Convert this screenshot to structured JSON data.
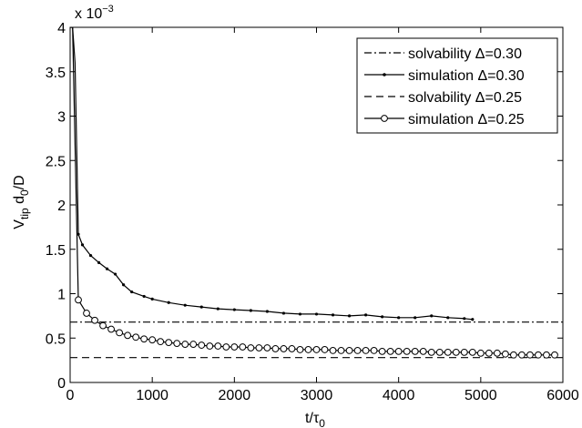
{
  "chart_data": {
    "type": "line",
    "xlabel": "t/τ",
    "xlabel_sub": "0",
    "ylabel_parts": {
      "v": "V",
      "tip": "tip",
      "d": " d",
      "zero": "0",
      "rest": "/D"
    },
    "y_multiplier": {
      "base": "x 10",
      "exp": "−3"
    },
    "xlim": [
      0,
      6000
    ],
    "ylim": [
      0,
      4
    ],
    "xticks": [
      0,
      1000,
      2000,
      3000,
      4000,
      5000,
      6000
    ],
    "xtick_labels": [
      "0",
      "1000",
      "2000",
      "3000",
      "4000",
      "5000",
      "6000"
    ],
    "yticks": [
      0,
      0.5,
      1,
      1.5,
      2,
      2.5,
      3,
      3.5,
      4
    ],
    "ytick_labels": [
      "0",
      "0.5",
      "1",
      "1.5",
      "2",
      "2.5",
      "3",
      "3.5",
      "4"
    ],
    "grid": false,
    "legend_position": "top-right",
    "series": [
      {
        "name": "solvability Δ=0.30",
        "style": "dashdot",
        "marker": "none",
        "x": [
          0,
          6000
        ],
        "y": [
          0.68,
          0.68
        ]
      },
      {
        "name": "simulation Δ=0.30",
        "style": "solid",
        "marker": "dot",
        "x": [
          100,
          150,
          250,
          350,
          450,
          550,
          650,
          750,
          900,
          1000,
          1200,
          1400,
          1600,
          1800,
          2000,
          2200,
          2400,
          2600,
          2800,
          3000,
          3200,
          3400,
          3600,
          3800,
          4000,
          4200,
          4400,
          4600,
          4800,
          4900
        ],
        "y": [
          1.67,
          1.55,
          1.43,
          1.35,
          1.28,
          1.22,
          1.1,
          1.02,
          0.97,
          0.94,
          0.9,
          0.87,
          0.85,
          0.83,
          0.82,
          0.81,
          0.8,
          0.78,
          0.77,
          0.77,
          0.76,
          0.75,
          0.76,
          0.74,
          0.73,
          0.73,
          0.75,
          0.73,
          0.72,
          0.71
        ]
      },
      {
        "name": "solvability Δ=0.25",
        "style": "dashed",
        "marker": "none",
        "x": [
          0,
          6000
        ],
        "y": [
          0.28,
          0.28
        ]
      },
      {
        "name": "simulation Δ=0.25",
        "style": "solid",
        "marker": "circle",
        "x": [
          100,
          200,
          300,
          400,
          500,
          600,
          700,
          800,
          900,
          1000,
          1100,
          1200,
          1300,
          1400,
          1500,
          1600,
          1700,
          1800,
          1900,
          2000,
          2100,
          2200,
          2300,
          2400,
          2500,
          2600,
          2700,
          2800,
          2900,
          3000,
          3100,
          3200,
          3300,
          3400,
          3500,
          3600,
          3700,
          3800,
          3900,
          4000,
          4100,
          4200,
          4300,
          4400,
          4500,
          4600,
          4700,
          4800,
          4900,
          5000,
          5100,
          5200,
          5300,
          5400,
          5500,
          5600,
          5700,
          5800,
          5900
        ],
        "y": [
          0.93,
          0.78,
          0.7,
          0.64,
          0.6,
          0.56,
          0.53,
          0.51,
          0.49,
          0.48,
          0.46,
          0.45,
          0.44,
          0.43,
          0.43,
          0.42,
          0.41,
          0.41,
          0.4,
          0.4,
          0.4,
          0.39,
          0.39,
          0.39,
          0.38,
          0.38,
          0.38,
          0.37,
          0.37,
          0.37,
          0.37,
          0.36,
          0.36,
          0.36,
          0.36,
          0.36,
          0.36,
          0.35,
          0.35,
          0.35,
          0.35,
          0.35,
          0.35,
          0.34,
          0.34,
          0.34,
          0.34,
          0.34,
          0.34,
          0.33,
          0.33,
          0.33,
          0.32,
          0.31,
          0.31,
          0.31,
          0.31,
          0.31,
          0.31
        ]
      }
    ],
    "initial_spike": {
      "x": [
        0,
        30,
        60,
        100
      ],
      "y": [
        4.0,
        4.0,
        3.6,
        1.67
      ]
    }
  }
}
